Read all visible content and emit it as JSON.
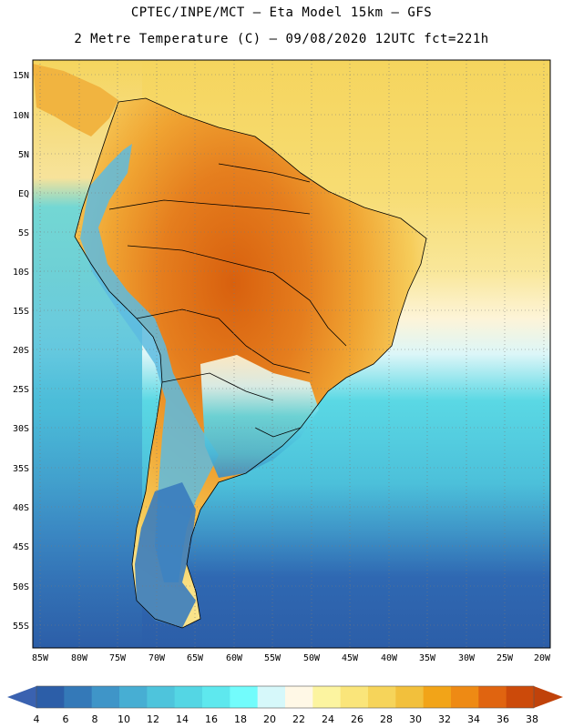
{
  "header": {
    "line1": "CPTEC/INPE/MCT –  Eta Model 15km – GFS",
    "line2": "2 Metre Temperature (C) – 09/08/2020 12UTC fct=221h"
  },
  "map": {
    "lat_labels": [
      "15N",
      "10N",
      "5N",
      "EQ",
      "5S",
      "10S",
      "15S",
      "20S",
      "25S",
      "30S",
      "35S",
      "40S",
      "45S",
      "50S",
      "55S"
    ],
    "lon_labels": [
      "85W",
      "80W",
      "75W",
      "70W",
      "65W",
      "60W",
      "55W",
      "50W",
      "45W",
      "40W",
      "35W",
      "30W",
      "25W",
      "20W"
    ]
  },
  "colorbar": {
    "labels": [
      "4",
      "6",
      "8",
      "10",
      "12",
      "14",
      "16",
      "18",
      "20",
      "22",
      "24",
      "26",
      "28",
      "30",
      "32",
      "34",
      "36",
      "38"
    ],
    "low_color": "#3a62b0",
    "high_color": "#c0420a",
    "colors": [
      "#2c5ea8",
      "#3479b8",
      "#3f95c8",
      "#47aed3",
      "#4ec4dc",
      "#54d6e4",
      "#5ee8ee",
      "#72fcfc",
      "#d6f8fa",
      "#fff8e6",
      "#fcf4a0",
      "#fae57a",
      "#f6d45a",
      "#f2c03c",
      "#f2a418",
      "#ee8a14",
      "#e06410",
      "#cc4a0a"
    ]
  },
  "legend": {
    "ocean_tropical": "#f9d862",
    "ocean_mid": "#5ed6e2",
    "ocean_south": "#3a7cbe",
    "land_hot": "#e3781e",
    "land_warm": "#f2b23c"
  }
}
